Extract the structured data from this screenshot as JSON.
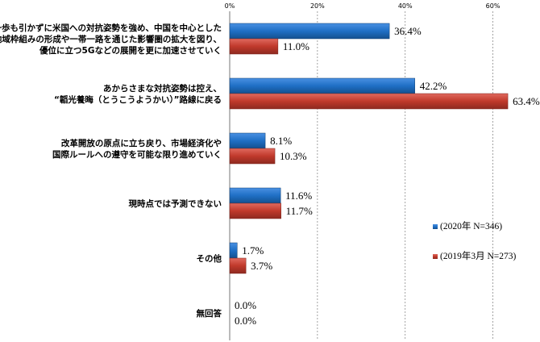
{
  "chart_data": {
    "type": "bar",
    "orientation": "horizontal",
    "xlim": [
      0,
      70
    ],
    "xticks": [
      0,
      20,
      40,
      60
    ],
    "xtick_labels": [
      "0%",
      "20%",
      "40%",
      "60%"
    ],
    "grid": true,
    "legend_position": "right",
    "categories": [
      [
        "一歩も引かずに米国への対抗姿勢を強め、中国を中心とした",
        "地域枠組みの形成や一帯一路を通じた影響圏の拡大を図り、",
        "優位に立つ5Gなどの展開を更に加速させていく"
      ],
      [
        "あからさまな対抗姿勢は控え、",
        "“韜光養晦（とうこうようかい）”路線に戻る"
      ],
      [
        "改革開放の原点に立ち戻り、市場経済化や",
        "国際ルールへの遵守を可能な限り進めていく"
      ],
      [
        "現時点では予測できない"
      ],
      [
        "その他"
      ],
      [
        "無回答"
      ]
    ],
    "series": [
      {
        "name": "(2020年 N=346)",
        "color": "#1f6fc5",
        "values": [
          36.4,
          42.2,
          8.1,
          11.6,
          1.7,
          0.0
        ],
        "labels": [
          "36.4%",
          "42.2%",
          "8.1%",
          "11.6%",
          "1.7%",
          "0.0%"
        ]
      },
      {
        "name": "(2019年3月 N=273)",
        "color": "#c0392b",
        "values": [
          11.0,
          63.4,
          10.3,
          11.7,
          3.7,
          0.0
        ],
        "labels": [
          "11.0%",
          "63.4%",
          "10.3%",
          "11.7%",
          "3.7%",
          "0.0%"
        ]
      }
    ]
  }
}
